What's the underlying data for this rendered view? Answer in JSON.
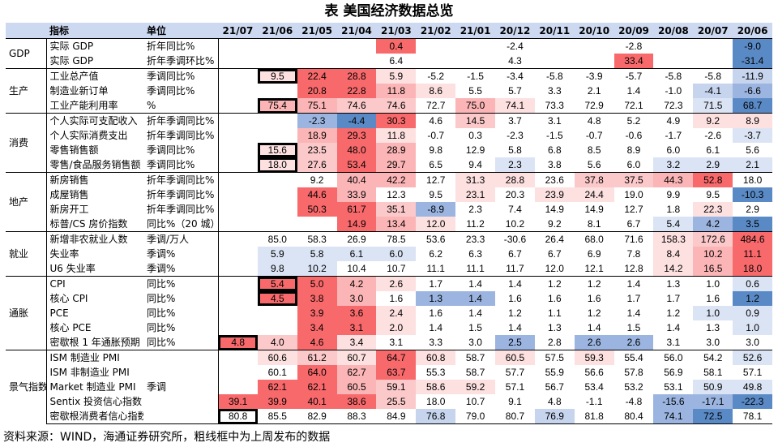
{
  "title": "表 美国经济数据总览",
  "source": "资料来源：WIND，海通证券研究所，粗线框中为上周发布的数据",
  "header": {
    "indicator": "指标",
    "unit": "单位",
    "periods": [
      "21/07",
      "21/06",
      "21/05",
      "21/04",
      "21/03",
      "21/02",
      "21/01",
      "20/12",
      "20/11",
      "20/10",
      "20/09",
      "20/08",
      "20/07",
      "20/06"
    ]
  },
  "groups": [
    {
      "name": "GDP",
      "rows": [
        {
          "indicator": "实际 GDP",
          "unit": "折年同比%",
          "values": [
            "",
            "",
            "",
            "",
            "0.4",
            "",
            "",
            "-2.4",
            "",
            "",
            "-2.8",
            "",
            "",
            "-9.0"
          ],
          "colors": [
            "",
            "",
            "",
            "",
            "#f8696b",
            "",
            "",
            "",
            "",
            "",
            "",
            "",
            "",
            "#5a8ac6"
          ],
          "bold": []
        },
        {
          "indicator": "实际 GDP",
          "unit": "折年季调环比%",
          "values": [
            "",
            "",
            "",
            "",
            "6.4",
            "",
            "",
            "4.3",
            "",
            "",
            "33.4",
            "",
            "",
            "-31.4"
          ],
          "colors": [
            "",
            "",
            "",
            "",
            "",
            "",
            "",
            "",
            "",
            "",
            "#f8696b",
            "",
            "",
            "#5a8ac6"
          ],
          "bold": []
        }
      ]
    },
    {
      "name": "生产",
      "rows": [
        {
          "indicator": "工业总产值",
          "unit": "季调同比%",
          "values": [
            "",
            "9.5",
            "22.4",
            "28.8",
            "5.9",
            "-5.2",
            "-1.5",
            "-3.4",
            "-5.8",
            "-3.9",
            "-5.7",
            "-5.8",
            "-5.8",
            "-11.9"
          ],
          "colors": [
            "",
            "#fde0e0",
            "#f8696b",
            "#f8696b",
            "#fde0e0",
            "",
            "",
            "",
            "",
            "",
            "",
            "",
            "",
            "#c6d4ee"
          ],
          "bold": [
            1
          ]
        },
        {
          "indicator": "制造业新订单",
          "unit": "季调同比%",
          "values": [
            "",
            "",
            "20.8",
            "22.8",
            "11.8",
            "8.6",
            "5.5",
            "5.7",
            "3.3",
            "2.1",
            "1.4",
            "-1.0",
            "-4.1",
            "-6.6"
          ],
          "colors": [
            "",
            "",
            "#f8696b",
            "#f8696b",
            "#fbb5b6",
            "#fde0e0",
            "",
            "",
            "",
            "",
            "",
            "",
            "#c6d4ee",
            "#9bb5e0"
          ],
          "bold": []
        },
        {
          "indicator": "工业产能利用率",
          "unit": "%",
          "values": [
            "",
            "75.4",
            "75.1",
            "74.6",
            "74.6",
            "72.7",
            "75.0",
            "74.1",
            "73.3",
            "72.9",
            "72.1",
            "72.3",
            "71.5",
            "68.7"
          ],
          "colors": [
            "",
            "#fbb5b6",
            "#fbb5b6",
            "#fbc9ca",
            "#fbc9ca",
            "",
            "#fbb5b6",
            "#fde0e0",
            "",
            "",
            "",
            "",
            "#dbe4f4",
            "#5a8ac6"
          ],
          "bold": [
            1
          ]
        }
      ]
    },
    {
      "name": "消费",
      "rows": [
        {
          "indicator": "个人实际可支配收入",
          "unit": "折年季调同比%",
          "values": [
            "",
            "",
            "-2.3",
            "-4.4",
            "30.3",
            "4.6",
            "14.5",
            "3.7",
            "3.1",
            "4.8",
            "5.2",
            "4.9",
            "9.2",
            "8.9"
          ],
          "colors": [
            "",
            "",
            "#9bb5e0",
            "#5a8ac6",
            "#f8696b",
            "",
            "#fbc9ca",
            "",
            "",
            "",
            "",
            "",
            "#fde0e0",
            "#fde0e0"
          ],
          "bold": []
        },
        {
          "indicator": "个人实际消费支出",
          "unit": "折年季调同比%",
          "values": [
            "",
            "",
            "18.9",
            "29.3",
            "11.8",
            "-0.7",
            "0.3",
            "-2.3",
            "-1.5",
            "-0.7",
            "-0.6",
            "-1.7",
            "-2.6",
            "-3.7"
          ],
          "colors": [
            "",
            "",
            "#fbb5b6",
            "#f8696b",
            "#fde0e0",
            "",
            "",
            "",
            "",
            "",
            "",
            "",
            "",
            "#dbe4f4"
          ],
          "bold": []
        },
        {
          "indicator": "零售销售额",
          "unit": "季调同比%",
          "values": [
            "",
            "15.6",
            "23.5",
            "48.0",
            "28.9",
            "9.8",
            "12.9",
            "5.8",
            "6.8",
            "8.5",
            "8.9",
            "6.0",
            "6.1",
            "5.6"
          ],
          "colors": [
            "",
            "#fde0e0",
            "#fbc9ca",
            "#f8696b",
            "#fbb5b6",
            "",
            "",
            "",
            "",
            "",
            "",
            "",
            "",
            ""
          ],
          "bold": [
            1
          ]
        },
        {
          "indicator": "零售/食品服务销售额",
          "unit": "季调同比%",
          "values": [
            "",
            "18.0",
            "27.6",
            "53.4",
            "29.7",
            "6.5",
            "9.4",
            "2.3",
            "3.8",
            "5.6",
            "6.0",
            "3.2",
            "2.9",
            "2.1"
          ],
          "colors": [
            "",
            "#fde0e0",
            "#fbc9ca",
            "#f8696b",
            "#fbb5b6",
            "",
            "",
            "#dbe4f4",
            "",
            "",
            "",
            "#dbe4f4",
            "#dbe4f4",
            "#dbe4f4"
          ],
          "bold": [
            1
          ]
        }
      ]
    },
    {
      "name": "地产",
      "rows": [
        {
          "indicator": "新房销售",
          "unit": "折年季调同比%",
          "values": [
            "",
            "",
            "9.2",
            "40.4",
            "42.2",
            "12.7",
            "31.3",
            "28.8",
            "23.6",
            "37.8",
            "37.5",
            "44.3",
            "52.8",
            "18.0"
          ],
          "colors": [
            "",
            "",
            "",
            "#fbb5b6",
            "#fbb5b6",
            "",
            "#fde0e0",
            "#fde0e0",
            "",
            "#fbc9ca",
            "#fbc9ca",
            "#fbb5b6",
            "#f8696b",
            ""
          ],
          "bold": []
        },
        {
          "indicator": "成屋销售",
          "unit": "折年季调同比%",
          "values": [
            "",
            "",
            "44.6",
            "33.9",
            "12.3",
            "9.5",
            "23.1",
            "20.3",
            "23.9",
            "24.4",
            "19.0",
            "9.9",
            "9.5",
            "-10.3"
          ],
          "colors": [
            "",
            "",
            "#f8696b",
            "#fbb5b6",
            "",
            "",
            "#fde0e0",
            "",
            "#fde0e0",
            "#fde0e0",
            "",
            "",
            "",
            "#5a8ac6"
          ],
          "bold": []
        },
        {
          "indicator": "新房开工",
          "unit": "折年季调同比%",
          "values": [
            "",
            "",
            "50.3",
            "61.7",
            "35.1",
            "-8.9",
            "2.3",
            "7.4",
            "14.9",
            "14.9",
            "12.7",
            "1.8",
            "22.3",
            "2.9"
          ],
          "colors": [
            "",
            "",
            "#f8696b",
            "#f8696b",
            "#fbc9ca",
            "#9bb5e0",
            "",
            "",
            "",
            "",
            "",
            "",
            "#fde0e0",
            ""
          ],
          "bold": []
        },
        {
          "indicator": "标普/CS 房价指数",
          "unit": "同比%（20 城）",
          "values": [
            "",
            "",
            "",
            "14.9",
            "13.4",
            "12.0",
            "11.2",
            "10.2",
            "9.2",
            "8.1",
            "6.7",
            "5.4",
            "4.2",
            "3.5"
          ],
          "colors": [
            "",
            "",
            "",
            "#f8696b",
            "#fbb5b6",
            "#fde0e0",
            "",
            "",
            "",
            "",
            "",
            "#dbe4f4",
            "#9bb5e0",
            "#5a8ac6"
          ],
          "bold": []
        }
      ]
    },
    {
      "name": "就业",
      "rows": [
        {
          "indicator": "新增非农就业人数",
          "unit": "季调/万人",
          "values": [
            "",
            "85.0",
            "58.3",
            "26.9",
            "78.5",
            "53.6",
            "23.3",
            "-30.6",
            "26.4",
            "68.0",
            "71.6",
            "158.3",
            "172.6",
            "484.6"
          ],
          "colors": [
            "",
            "",
            "",
            "",
            "",
            "",
            "",
            "",
            "",
            "",
            "",
            "#fde0e0",
            "#fbc9ca",
            "#f8696b"
          ],
          "bold": []
        },
        {
          "indicator": "失业率",
          "unit": "季调%",
          "values": [
            "",
            "5.9",
            "5.8",
            "6.1",
            "6.0",
            "6.2",
            "6.3",
            "6.7",
            "6.7",
            "6.9",
            "7.8",
            "8.4",
            "10.2",
            "11.1"
          ],
          "colors": [
            "",
            "#dbe4f4",
            "#dbe4f4",
            "#dbe4f4",
            "#dbe4f4",
            "",
            "",
            "",
            "",
            "",
            "",
            "#fde0e0",
            "#fbb5b6",
            "#f8696b"
          ],
          "bold": []
        },
        {
          "indicator": "U6 失业率",
          "unit": "季调%",
          "values": [
            "",
            "9.8",
            "10.2",
            "10.4",
            "10.7",
            "11.1",
            "11.1",
            "11.7",
            "12.0",
            "12.1",
            "12.8",
            "14.2",
            "16.5",
            "18.0"
          ],
          "colors": [
            "",
            "#dbe4f4",
            "#dbe4f4",
            "",
            "",
            "",
            "",
            "",
            "",
            "",
            "",
            "#fde0e0",
            "#fbb5b6",
            "#f8696b"
          ],
          "bold": []
        }
      ]
    },
    {
      "name": "通胀",
      "rows": [
        {
          "indicator": "CPI",
          "unit": "同比%",
          "values": [
            "",
            "5.4",
            "5.0",
            "4.2",
            "2.6",
            "1.7",
            "1.4",
            "1.4",
            "1.2",
            "1.2",
            "1.4",
            "1.3",
            "1.0",
            "0.6"
          ],
          "colors": [
            "",
            "#f8696b",
            "#f8696b",
            "#fbb5b6",
            "#fde0e0",
            "",
            "",
            "",
            "",
            "",
            "",
            "",
            "",
            "#dbe4f4"
          ],
          "bold": [
            1
          ]
        },
        {
          "indicator": "核心 CPI",
          "unit": "同比%",
          "values": [
            "",
            "4.5",
            "3.8",
            "3.0",
            "1.6",
            "1.3",
            "1.4",
            "1.6",
            "1.6",
            "1.6",
            "1.7",
            "1.7",
            "1.6",
            "1.2"
          ],
          "colors": [
            "",
            "#f8696b",
            "#f8696b",
            "#fbb5b6",
            "",
            "#9bb5e0",
            "#9bb5e0",
            "",
            "",
            "",
            "",
            "",
            "",
            "#5a8ac6"
          ],
          "bold": [
            1
          ]
        },
        {
          "indicator": "PCE",
          "unit": "同比%",
          "values": [
            "",
            "",
            "3.9",
            "3.6",
            "2.4",
            "1.6",
            "1.4",
            "1.2",
            "1.1",
            "1.2",
            "1.4",
            "1.2",
            "1.0",
            "0.9"
          ],
          "colors": [
            "",
            "",
            "#f8696b",
            "#f8696b",
            "#fde0e0",
            "",
            "",
            "",
            "",
            "",
            "",
            "",
            "#dbe4f4",
            "#dbe4f4"
          ],
          "bold": []
        },
        {
          "indicator": "核心 PCE",
          "unit": "同比%",
          "values": [
            "",
            "",
            "3.4",
            "3.1",
            "2.0",
            "1.4",
            "1.5",
            "1.4",
            "1.3",
            "1.4",
            "1.5",
            "1.4",
            "1.3",
            "1.0"
          ],
          "colors": [
            "",
            "",
            "#f8696b",
            "#f8696b",
            "#fde0e0",
            "",
            "",
            "",
            "",
            "",
            "",
            "",
            "",
            "#dbe4f4"
          ],
          "bold": []
        },
        {
          "indicator": "密歇根 1 年通胀预期",
          "unit": "同比%",
          "values": [
            "4.8",
            "4.0",
            "4.6",
            "3.4",
            "3.1",
            "3.3",
            "3.0",
            "2.5",
            "2.8",
            "2.6",
            "2.6",
            "3.1",
            "3.0",
            "3.0"
          ],
          "colors": [
            "#f8696b",
            "#fbc9ca",
            "#f8696b",
            "#fde0e0",
            "",
            "",
            "",
            "#9bb5e0",
            "",
            "#9bb5e0",
            "#9bb5e0",
            "",
            "",
            ""
          ],
          "bold": [
            0
          ]
        }
      ]
    },
    {
      "name": "景气指数",
      "rows": [
        {
          "indicator": "ISM 制造业 PMI",
          "unit": "",
          "values": [
            "",
            "60.6",
            "61.2",
            "60.7",
            "64.7",
            "60.8",
            "58.7",
            "60.5",
            "57.5",
            "59.3",
            "55.4",
            "56.0",
            "54.2",
            "52.6"
          ],
          "colors": [
            "",
            "#fde0e0",
            "#fbc9ca",
            "#fde0e0",
            "#f8696b",
            "#fde0e0",
            "",
            "#fde0e0",
            "",
            "#fde0e0",
            "",
            "",
            "",
            "#dbe4f4"
          ],
          "bold": []
        },
        {
          "indicator": "ISM 非制造业 PMI",
          "unit": "",
          "values": [
            "",
            "60.1",
            "64.0",
            "62.7",
            "63.7",
            "55.3",
            "58.7",
            "57.7",
            "55.9",
            "56.6",
            "57.8",
            "56.9",
            "58.1",
            "57.1"
          ],
          "colors": [
            "",
            "",
            "#f8696b",
            "#fbb5b6",
            "#f8696b",
            "",
            "",
            "",
            "",
            "",
            "",
            "",
            "",
            ""
          ],
          "bold": []
        },
        {
          "indicator": "Market 制造业 PMI",
          "unit": "季调",
          "values": [
            "",
            "62.1",
            "62.1",
            "60.5",
            "59.1",
            "58.6",
            "59.2",
            "57.1",
            "56.7",
            "53.4",
            "53.2",
            "53.1",
            "50.9",
            "49.8"
          ],
          "colors": [
            "",
            "#f8696b",
            "#f8696b",
            "#fbb5b6",
            "#fbc9ca",
            "#fde0e0",
            "#fde0e0",
            "",
            "",
            "",
            "",
            "",
            "#dbe4f4",
            "#dbe4f4"
          ],
          "bold": []
        },
        {
          "indicator": "Sentix 投资信心指数",
          "unit": "",
          "values": [
            "39.1",
            "39.9",
            "40.1",
            "38.6",
            "25.5",
            "18.0",
            "10.7",
            "9.1",
            "4.8",
            "-1.1",
            "-4.8",
            "-15.6",
            "-17.1",
            "-22.3"
          ],
          "colors": [
            "#f8696b",
            "#f8696b",
            "#f8696b",
            "#f8696b",
            "#fbc9ca",
            "",
            "",
            "",
            "",
            "",
            "",
            "#9bb5e0",
            "#9bb5e0",
            "#5a8ac6"
          ],
          "bold": []
        },
        {
          "indicator": "密歇根消费者信心指数",
          "unit": "",
          "values": [
            "80.8",
            "85.5",
            "82.9",
            "88.3",
            "84.9",
            "76.8",
            "79.0",
            "80.7",
            "76.9",
            "81.8",
            "80.4",
            "74.1",
            "72.5",
            "78.1"
          ],
          "colors": [
            "",
            "",
            "",
            "",
            "",
            "#c6d4ee",
            "",
            "",
            "#c6d4ee",
            "",
            "",
            "#9bb5e0",
            "#5a8ac6",
            ""
          ],
          "bold": [
            0
          ]
        }
      ]
    }
  ]
}
